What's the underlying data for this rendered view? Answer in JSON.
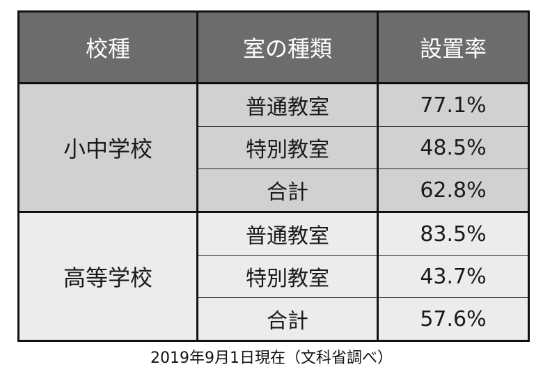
{
  "table": {
    "headers": [
      "校種",
      "室の種類",
      "設置率"
    ],
    "groups": [
      {
        "school": "小中学校",
        "rows": [
          {
            "type": "普通教室",
            "rate": "77.1%"
          },
          {
            "type": "特別教室",
            "rate": "48.5%"
          },
          {
            "type": "合計",
            "rate": "62.8%"
          }
        ]
      },
      {
        "school": "高等学校",
        "rows": [
          {
            "type": "普通教室",
            "rate": "83.5%"
          },
          {
            "type": "特別教室",
            "rate": "43.7%"
          },
          {
            "type": "合計",
            "rate": "57.6%"
          }
        ]
      }
    ],
    "colors": {
      "header_bg": "#6d6b6c",
      "header_text": "#ffffff",
      "group1_bg": "#d1d1d2",
      "group2_bg": "#ececec",
      "border": "#111111"
    }
  },
  "caption": "2019年9月1日現在（文科省調べ）"
}
